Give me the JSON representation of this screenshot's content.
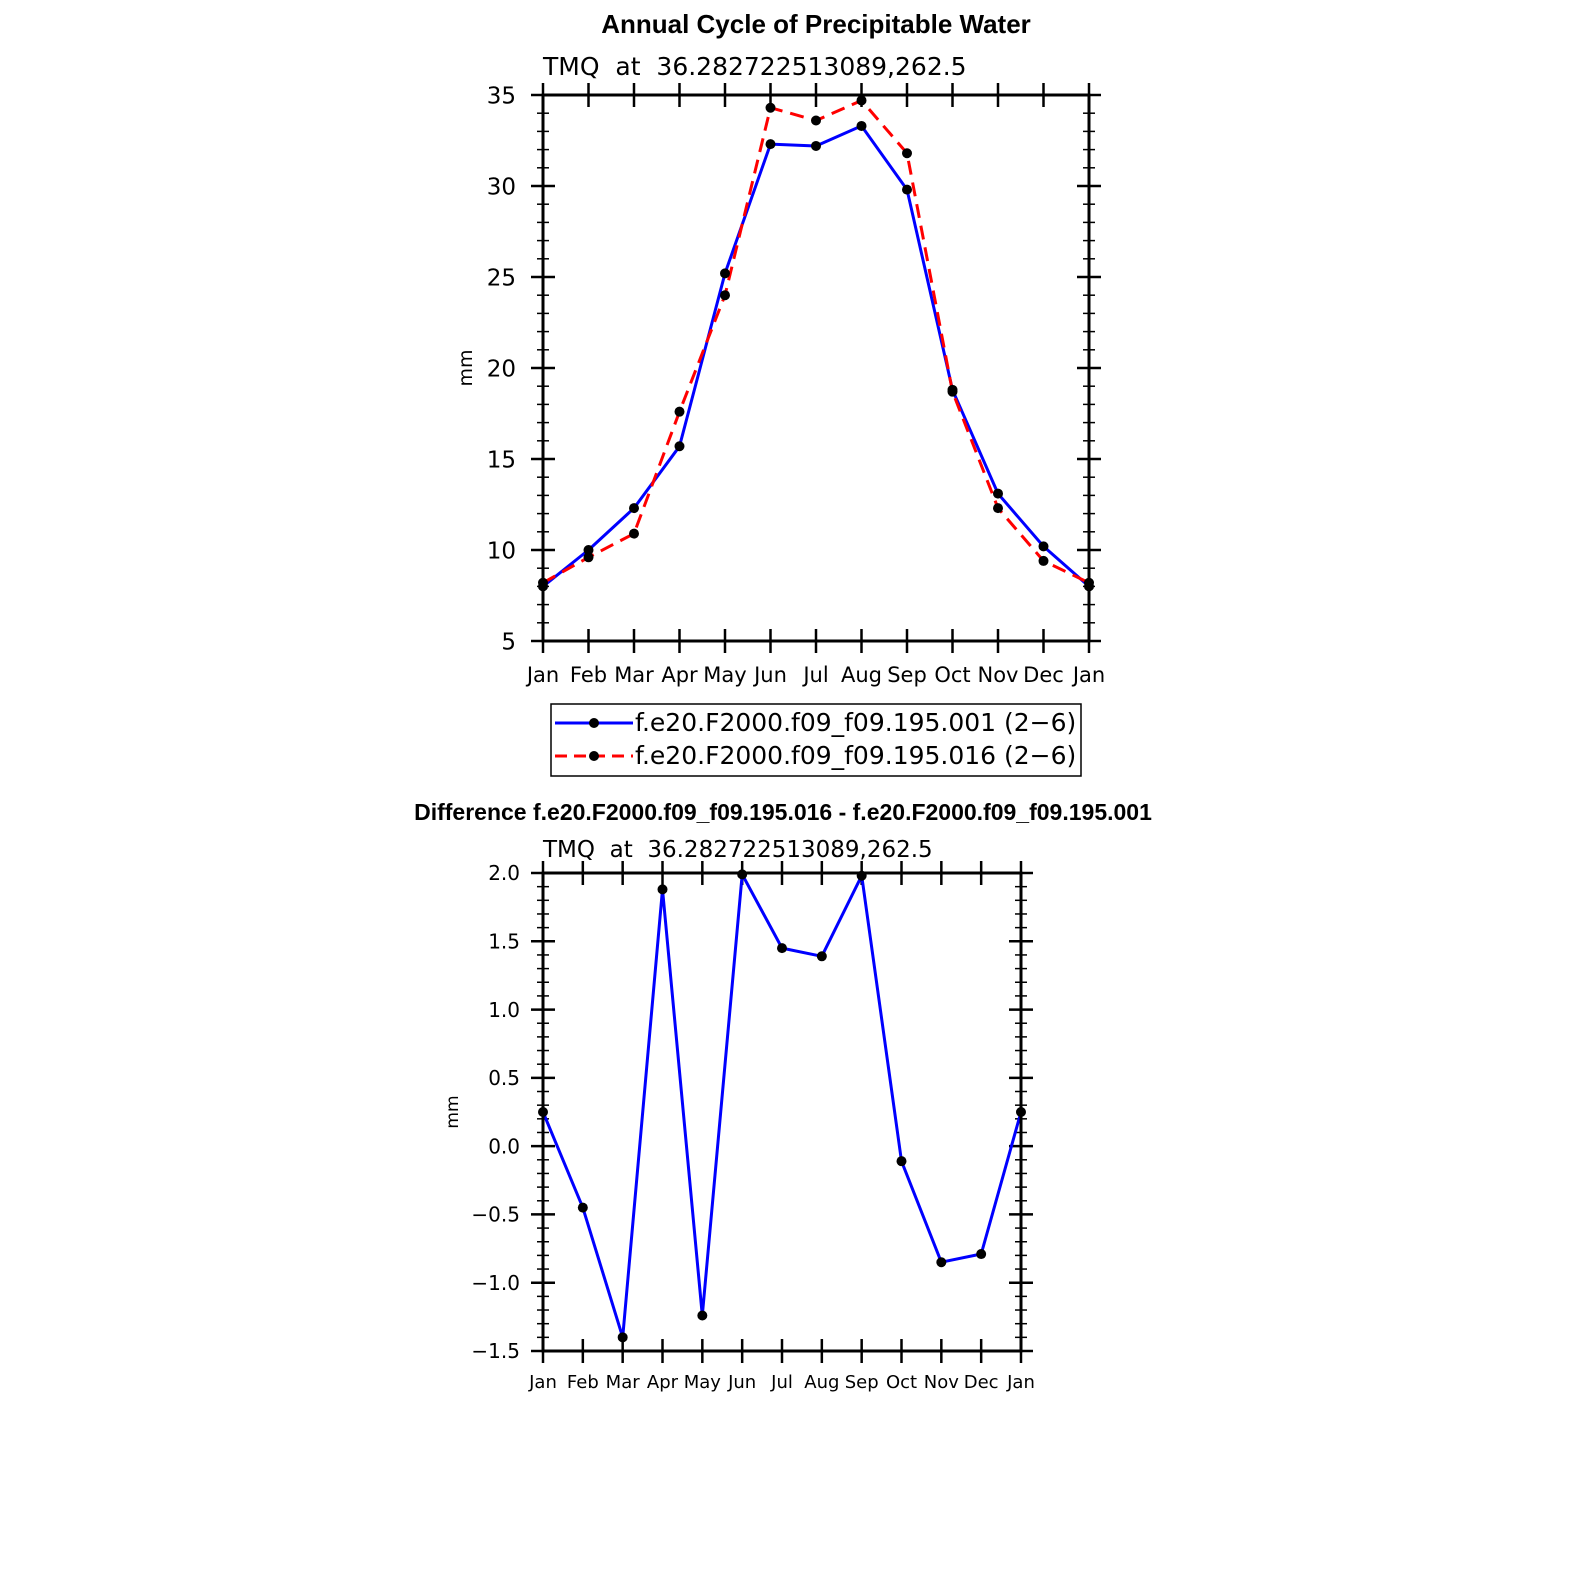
{
  "chart_data": [
    {
      "type": "line",
      "title": "Annual Cycle of Precipitable Water",
      "subtitle": "TMQ  at  36.282722513089,262.5",
      "ylabel": "mm",
      "xlabel": "",
      "ylim": [
        5,
        35
      ],
      "yticks": [
        "5",
        "10",
        "15",
        "20",
        "25",
        "30",
        "35"
      ],
      "categories": [
        "Jan",
        "Feb",
        "Mar",
        "Apr",
        "May",
        "Jun",
        "Jul",
        "Aug",
        "Sep",
        "Oct",
        "Nov",
        "Dec",
        "Jan"
      ],
      "series": [
        {
          "name": "f.e20.F2000.f09_f09.195.001 (2−6)",
          "color": "#0000ff",
          "style": "solid",
          "values": [
            8.0,
            10.0,
            12.3,
            15.7,
            25.2,
            32.3,
            32.2,
            33.3,
            29.8,
            18.8,
            13.1,
            10.2,
            8.0
          ]
        },
        {
          "name": "f.e20.F2000.f09_f09.195.016 (2−6)",
          "color": "#ff0000",
          "style": "dashed",
          "values": [
            8.2,
            9.6,
            10.9,
            17.6,
            24.0,
            34.3,
            33.6,
            34.7,
            31.8,
            18.7,
            12.3,
            9.4,
            8.2
          ]
        }
      ]
    },
    {
      "type": "line",
      "title": "Difference f.e20.F2000.f09_f09.195.016 - f.e20.F2000.f09_f09.195.001",
      "subtitle": "TMQ  at  36.282722513089,262.5",
      "ylabel": "mm",
      "xlabel": "",
      "ylim": [
        -1.5,
        2.0
      ],
      "yticks": [
        "−1.5",
        "−1.0",
        "−0.5",
        "0.0",
        "0.5",
        "1.0",
        "1.5",
        "2.0"
      ],
      "categories": [
        "Jan",
        "Feb",
        "Mar",
        "Apr",
        "May",
        "Jun",
        "Jul",
        "Aug",
        "Sep",
        "Oct",
        "Nov",
        "Dec",
        "Jan"
      ],
      "series": [
        {
          "name": "difference",
          "color": "#0000ff",
          "style": "solid",
          "values": [
            0.25,
            -0.45,
            -1.4,
            1.88,
            -1.24,
            1.99,
            1.45,
            1.39,
            1.98,
            -0.11,
            -0.85,
            -0.79,
            0.25
          ]
        }
      ]
    }
  ]
}
